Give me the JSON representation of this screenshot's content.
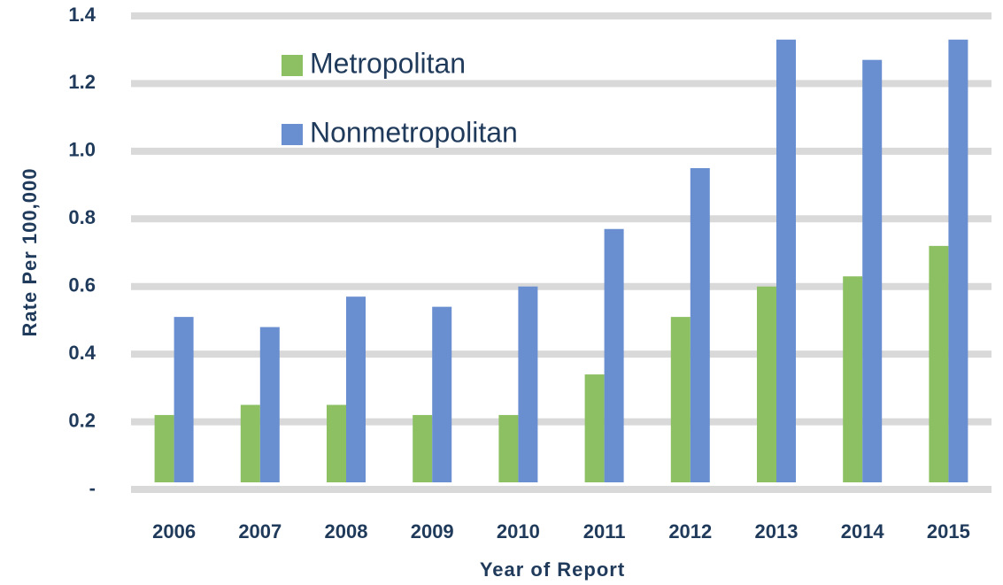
{
  "chart_data": {
    "type": "bar",
    "x_label": "Year of Report",
    "y_label": "Rate Per 100,000",
    "categories": [
      "2006",
      "2007",
      "2008",
      "2009",
      "2010",
      "2011",
      "2012",
      "2013",
      "2014",
      "2015"
    ],
    "series": [
      {
        "name": "Metropolitan",
        "color": "#8cc063",
        "values": [
          0.22,
          0.25,
          0.25,
          0.22,
          0.22,
          0.34,
          0.51,
          0.6,
          0.63,
          0.72
        ]
      },
      {
        "name": "Nonmetropolitan",
        "color": "#6a8fd1",
        "values": [
          0.51,
          0.48,
          0.57,
          0.54,
          0.6,
          0.77,
          0.95,
          1.33,
          1.27,
          1.33
        ]
      }
    ],
    "ylim": [
      0,
      1.4
    ],
    "yticks": [
      {
        "value": 0,
        "label": "-"
      },
      0.2,
      0.4,
      0.6,
      0.8,
      {
        "value": 1.0,
        "label": "1.0"
      },
      1.2,
      1.4
    ],
    "grid": true,
    "legend": "upper left"
  }
}
